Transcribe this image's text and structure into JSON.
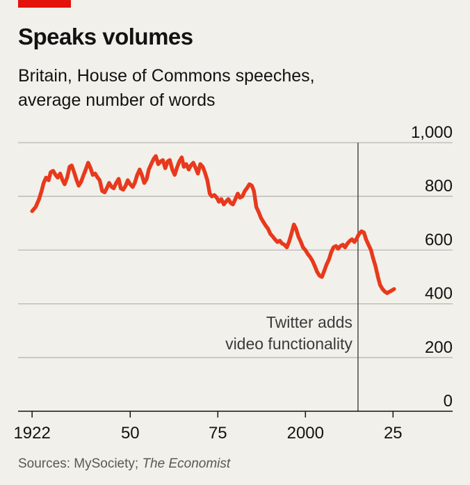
{
  "header": {
    "title": "Speaks volumes",
    "subtitle_line1": "Britain, House of Commons speeches,",
    "subtitle_line2": "average number of words"
  },
  "source": {
    "prefix": "Sources: MySociety; ",
    "publication": "The Economist"
  },
  "colors": {
    "line": "#e8391d",
    "accent_bar": "#e3120b",
    "background": "#f1f0ea",
    "grid": "#b7b7b7"
  },
  "chart_data": {
    "type": "line",
    "title": "Speaks volumes",
    "subtitle": "Britain, House of Commons speeches, average number of words",
    "xlabel": "",
    "ylabel": "",
    "xlim": [
      1918,
      2042
    ],
    "ylim": [
      0,
      1000
    ],
    "y_ticks": [
      {
        "value": 0,
        "label": "0"
      },
      {
        "value": 200,
        "label": "200"
      },
      {
        "value": 400,
        "label": "400"
      },
      {
        "value": 600,
        "label": "600"
      },
      {
        "value": 800,
        "label": "800"
      },
      {
        "value": 1000,
        "label": "1,000"
      }
    ],
    "x_ticks": [
      {
        "value": 1922,
        "label": "1922"
      },
      {
        "value": 1950,
        "label": "50"
      },
      {
        "value": 1975,
        "label": "75"
      },
      {
        "value": 2000,
        "label": "2000"
      },
      {
        "value": 2025,
        "label": "25"
      }
    ],
    "grid": "horizontal",
    "y_axis_position": "right",
    "annotation": {
      "x": 2015,
      "line1": "Twitter adds",
      "line2": "video functionality"
    },
    "series": [
      {
        "name": "",
        "x": [
          1922.0,
          1923.0,
          1924.0,
          1924.7,
          1925.3,
          1926.0,
          1926.7,
          1927.3,
          1928.0,
          1928.7,
          1929.3,
          1930.0,
          1930.7,
          1931.3,
          1932.0,
          1932.7,
          1933.3,
          1934.0,
          1934.7,
          1935.3,
          1936.0,
          1936.7,
          1937.3,
          1938.0,
          1938.7,
          1939.3,
          1940.0,
          1940.7,
          1941.3,
          1942.0,
          1942.7,
          1943.3,
          1944.0,
          1944.7,
          1945.3,
          1946.0,
          1946.7,
          1947.3,
          1948.0,
          1948.7,
          1949.3,
          1950.0,
          1950.7,
          1951.3,
          1952.0,
          1952.7,
          1953.3,
          1954.0,
          1954.7,
          1955.3,
          1956.0,
          1956.7,
          1957.3,
          1958.0,
          1958.7,
          1959.3,
          1960.0,
          1960.7,
          1961.3,
          1962.0,
          1962.7,
          1963.3,
          1964.0,
          1964.7,
          1965.3,
          1966.0,
          1966.7,
          1967.3,
          1968.0,
          1968.7,
          1969.3,
          1970.0,
          1970.7,
          1971.3,
          1972.0,
          1972.7,
          1973.3,
          1974.0,
          1974.7,
          1975.3,
          1976.0,
          1976.7,
          1977.3,
          1978.0,
          1978.7,
          1979.3,
          1980.0,
          1980.7,
          1981.3,
          1982.0,
          1982.7,
          1983.3,
          1984.0,
          1984.7,
          1985.3,
          1986.0,
          1986.7,
          1987.3,
          1988.0,
          1988.7,
          1989.3,
          1990.0,
          1990.7,
          1991.3,
          1992.0,
          1992.7,
          1993.3,
          1994.0,
          1994.7,
          1995.3,
          1996.0,
          1996.7,
          1997.3,
          1998.0,
          1998.7,
          1999.3,
          2000.0,
          2000.7,
          2001.3,
          2002.0,
          2002.7,
          2003.3,
          2004.0,
          2004.7,
          2005.3,
          2006.0,
          2006.7,
          2007.3,
          2008.0,
          2008.7,
          2009.3,
          2010.0,
          2010.7,
          2011.3,
          2012.0,
          2012.7,
          2013.3,
          2014.0,
          2014.7,
          2015.3,
          2016.0,
          2016.7,
          2017.3,
          2018.0,
          2018.7,
          2019.3,
          2020.0,
          2020.7,
          2021.3,
          2022.0,
          2022.7,
          2023.3,
          2024.0,
          2024.7,
          2025.3
        ],
        "values": [
          745,
          760,
          790,
          820,
          850,
          870,
          860,
          890,
          895,
          880,
          870,
          885,
          860,
          845,
          870,
          910,
          915,
          890,
          860,
          840,
          855,
          880,
          900,
          925,
          905,
          880,
          885,
          870,
          860,
          820,
          815,
          830,
          850,
          835,
          830,
          850,
          865,
          830,
          825,
          840,
          860,
          845,
          835,
          850,
          880,
          900,
          880,
          850,
          865,
          900,
          920,
          940,
          950,
          920,
          930,
          935,
          905,
          930,
          935,
          900,
          880,
          905,
          930,
          945,
          910,
          920,
          900,
          915,
          925,
          905,
          885,
          920,
          910,
          890,
          860,
          810,
          800,
          805,
          795,
          780,
          790,
          770,
          780,
          790,
          775,
          770,
          790,
          810,
          795,
          800,
          820,
          830,
          845,
          840,
          820,
          760,
          740,
          720,
          705,
          690,
          680,
          660,
          650,
          640,
          630,
          635,
          625,
          620,
          610,
          630,
          660,
          695,
          680,
          650,
          630,
          610,
          600,
          585,
          575,
          560,
          540,
          520,
          505,
          500,
          520,
          545,
          565,
          590,
          610,
          615,
          605,
          615,
          620,
          610,
          625,
          635,
          640,
          630,
          645,
          660,
          670,
          665,
          640,
          620,
          600,
          570,
          540,
          500,
          470,
          455,
          445,
          440,
          445,
          450,
          455
        ]
      }
    ]
  }
}
